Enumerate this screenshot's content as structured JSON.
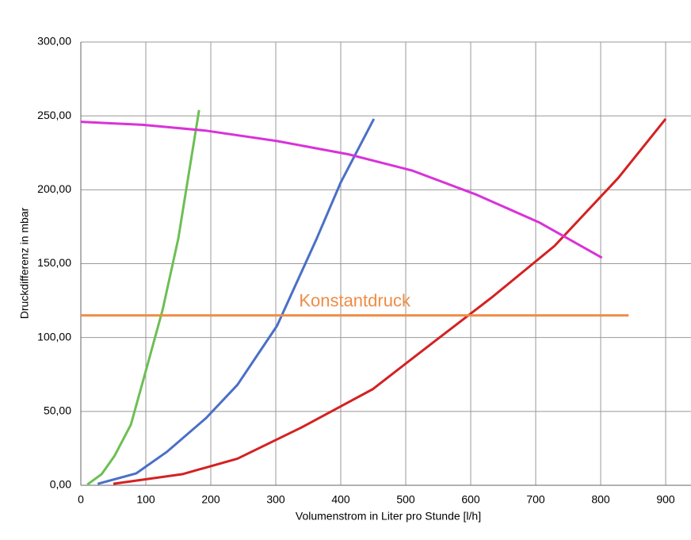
{
  "chart_data": {
    "type": "line",
    "x_label": "Volumenstrom in Liter pro Stunde [l/h]",
    "y_label": "Druckdifferenz in mbar",
    "xlim": [
      0,
      939
    ],
    "ylim": [
      0,
      300
    ],
    "xticks": [
      0,
      100,
      200,
      300,
      400,
      500,
      600,
      700,
      800,
      900
    ],
    "yticks": [
      {
        "value": 0,
        "label": "0,00"
      },
      {
        "value": 50,
        "label": "50,00"
      },
      {
        "value": 100,
        "label": "100,00"
      },
      {
        "value": 150,
        "label": "150,00"
      },
      {
        "value": 200,
        "label": "200,00"
      },
      {
        "value": 250,
        "label": "250,00"
      },
      {
        "value": 300,
        "label": "300,00"
      }
    ],
    "grid": true,
    "series": [
      {
        "color": "#6cbf55",
        "x": [
          10,
          32,
          52,
          77,
          101,
          126,
          150,
          168,
          182
        ],
        "values": [
          0.5,
          7.5,
          20,
          41,
          79,
          119,
          167,
          216,
          254
        ]
      },
      {
        "color": "#4a6fc7",
        "x": [
          26,
          85,
          132,
          193,
          241,
          302,
          363,
          400,
          451
        ],
        "values": [
          1,
          8,
          22.5,
          45.6,
          68,
          108,
          167,
          205,
          248
        ]
      },
      {
        "color": "#d42121",
        "x": [
          50,
          156,
          241,
          339,
          449,
          546,
          632,
          729,
          827,
          900
        ],
        "values": [
          1,
          7.5,
          18,
          39,
          65,
          98,
          127,
          162,
          208,
          248
        ]
      },
      {
        "color": "#d932d9",
        "x": [
          0,
          95,
          193,
          302,
          412,
          510,
          607,
          705,
          802
        ],
        "values": [
          246,
          244,
          240,
          233,
          224,
          213,
          197,
          178,
          154
        ]
      },
      {
        "name": "Konstantdruck",
        "color": "#ee8c45",
        "x": [
          0,
          843
        ],
        "values": [
          115,
          115
        ]
      }
    ]
  }
}
